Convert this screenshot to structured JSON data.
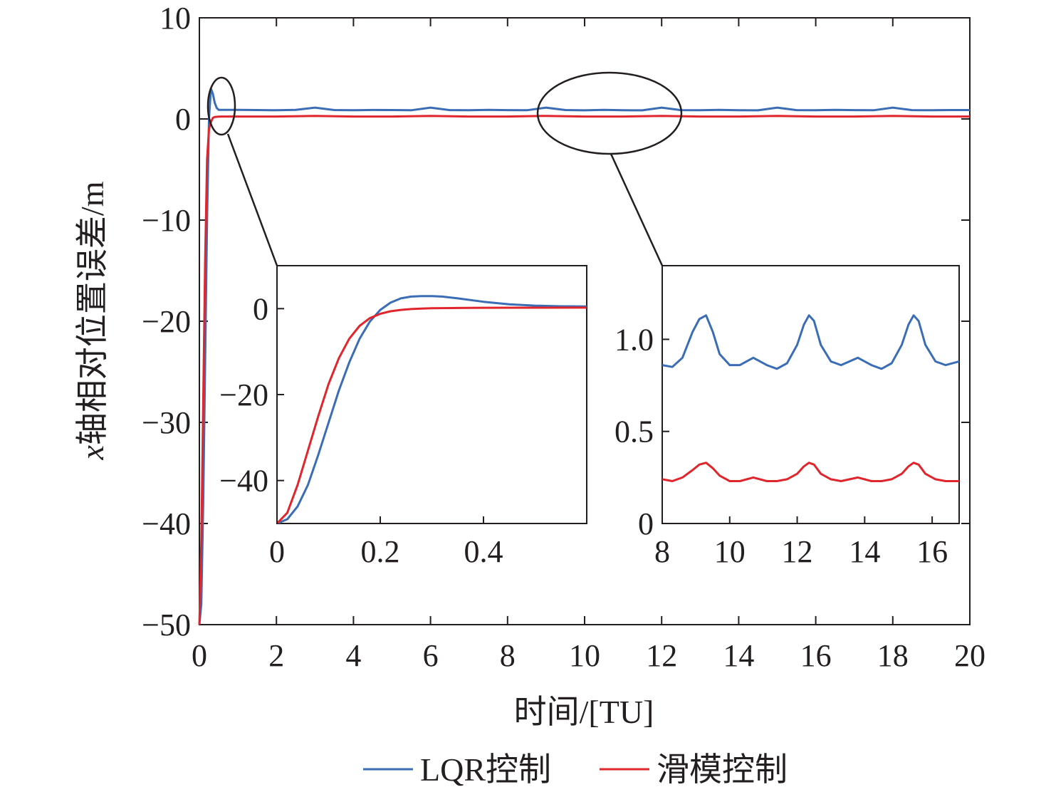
{
  "colors": {
    "lqr": "#3a6db5",
    "sliding": "#e0262c",
    "axis": "#231f20"
  },
  "chart_data": [
    {
      "id": "main",
      "type": "line",
      "xlabel": "时间/[TU]",
      "ylabel_var": "x",
      "ylabel_rest": "轴相对位置误差/m",
      "xlim": [
        0,
        20
      ],
      "ylim": [
        -50,
        10
      ],
      "xticks": [
        0,
        2,
        4,
        6,
        8,
        10,
        12,
        14,
        16,
        18,
        20
      ],
      "yticks": [
        10,
        0,
        -10,
        -20,
        -30,
        -40,
        -50
      ],
      "ytick_labels": [
        "10",
        "0",
        "−10",
        "−20",
        "−30",
        "−40",
        "−50"
      ],
      "grid": false,
      "series": [
        {
          "name": "LQR控制",
          "color": "#3a6db5",
          "x": [
            0,
            0.05,
            0.1,
            0.15,
            0.2,
            0.25,
            0.3,
            0.35,
            0.4,
            0.45,
            0.5,
            0.6,
            0.8,
            1,
            1.5,
            2,
            2.5,
            3,
            3.5,
            4,
            4.5,
            5,
            5.5,
            6,
            6.5,
            7,
            7.5,
            8,
            8.5,
            9,
            9.5,
            10,
            10.5,
            11,
            11.5,
            12,
            12.5,
            13,
            13.5,
            14,
            14.5,
            15,
            15.5,
            16,
            16.5,
            17,
            17.5,
            18,
            18.5,
            19,
            19.5,
            20
          ],
          "y": [
            -50,
            -48,
            -38,
            -24,
            -10,
            0,
            3,
            2.5,
            1.6,
            1.1,
            0.9,
            0.9,
            0.9,
            0.9,
            0.88,
            0.86,
            0.9,
            1.12,
            0.88,
            0.86,
            0.89,
            0.88,
            0.86,
            1.12,
            0.87,
            0.86,
            0.9,
            0.87,
            0.86,
            1.12,
            0.88,
            0.85,
            0.9,
            0.86,
            0.85,
            1.12,
            0.87,
            0.86,
            0.9,
            0.86,
            0.85,
            1.12,
            0.87,
            0.86,
            0.9,
            0.87,
            0.86,
            1.12,
            0.87,
            0.86,
            0.88,
            0.88
          ]
        },
        {
          "name": "滑模控制",
          "color": "#e0262c",
          "x": [
            0,
            0.05,
            0.1,
            0.15,
            0.2,
            0.25,
            0.3,
            0.35,
            0.4,
            0.5,
            0.6,
            1,
            2,
            3,
            4,
            5,
            6,
            7,
            8,
            9,
            10,
            11,
            12,
            13,
            14,
            15,
            16,
            17,
            18,
            19,
            20
          ],
          "y": [
            -50,
            -42,
            -28,
            -14,
            -4,
            -1,
            -0.3,
            0.1,
            0.2,
            0.23,
            0.24,
            0.24,
            0.24,
            0.3,
            0.24,
            0.24,
            0.3,
            0.24,
            0.24,
            0.3,
            0.24,
            0.24,
            0.3,
            0.24,
            0.24,
            0.3,
            0.24,
            0.24,
            0.3,
            0.24,
            0.24
          ]
        }
      ],
      "legend": {
        "placement": "bottom-center"
      }
    },
    {
      "id": "inset-left",
      "type": "line",
      "xlim": [
        0,
        0.6
      ],
      "ylim": [
        -50,
        10
      ],
      "xticks": [
        0,
        0.2,
        0.4
      ],
      "xtick_labels": [
        "0",
        "0.2",
        "0.4"
      ],
      "yticks": [
        0,
        -20,
        -40
      ],
      "ytick_labels": [
        "0",
        "−20",
        "−40"
      ],
      "series": [
        {
          "name": "LQR控制",
          "color": "#3a6db5",
          "x": [
            0,
            0.02,
            0.04,
            0.06,
            0.08,
            0.1,
            0.12,
            0.14,
            0.16,
            0.18,
            0.2,
            0.22,
            0.24,
            0.26,
            0.28,
            0.3,
            0.32,
            0.35,
            0.4,
            0.45,
            0.5,
            0.55,
            0.6
          ],
          "y": [
            -50,
            -49,
            -46,
            -41,
            -34,
            -26.5,
            -19,
            -12.5,
            -7,
            -3,
            -0.3,
            1.4,
            2.4,
            2.8,
            2.9,
            2.9,
            2.8,
            2.4,
            1.6,
            1.0,
            0.7,
            0.55,
            0.5
          ]
        },
        {
          "name": "滑模控制",
          "color": "#e0262c",
          "x": [
            0,
            0.02,
            0.04,
            0.06,
            0.08,
            0.1,
            0.12,
            0.14,
            0.16,
            0.18,
            0.2,
            0.22,
            0.24,
            0.26,
            0.28,
            0.3,
            0.35,
            0.4,
            0.5,
            0.6
          ],
          "y": [
            -50,
            -47.5,
            -41,
            -33,
            -25,
            -17.5,
            -11.5,
            -7,
            -4,
            -2.2,
            -1.2,
            -0.6,
            -0.3,
            -0.1,
            0,
            0.1,
            0.15,
            0.2,
            0.22,
            0.24
          ]
        }
      ]
    },
    {
      "id": "inset-right",
      "type": "line",
      "xlim": [
        8,
        16.8
      ],
      "ylim": [
        0,
        1.4
      ],
      "xticks": [
        8,
        10,
        12,
        14,
        16
      ],
      "xtick_labels": [
        "8",
        "10",
        "12",
        "14",
        "16"
      ],
      "yticks": [
        1.0,
        0.5,
        0
      ],
      "ytick_labels": [
        "1.0",
        "0.5",
        "0"
      ],
      "series": [
        {
          "name": "LQR控制",
          "color": "#3a6db5",
          "x": [
            8,
            8.3,
            8.6,
            8.9,
            9.1,
            9.3,
            9.5,
            9.7,
            10,
            10.3,
            10.7,
            11.1,
            11.4,
            11.7,
            12,
            12.2,
            12.35,
            12.5,
            12.7,
            13,
            13.3,
            13.8,
            14.2,
            14.5,
            14.8,
            15.1,
            15.3,
            15.45,
            15.6,
            15.8,
            16.1,
            16.4,
            16.8
          ],
          "y": [
            0.86,
            0.85,
            0.9,
            1.04,
            1.11,
            1.13,
            1.04,
            0.92,
            0.86,
            0.86,
            0.9,
            0.86,
            0.84,
            0.87,
            0.97,
            1.08,
            1.13,
            1.1,
            0.97,
            0.88,
            0.86,
            0.9,
            0.86,
            0.84,
            0.87,
            0.97,
            1.08,
            1.13,
            1.1,
            0.97,
            0.88,
            0.86,
            0.88
          ]
        },
        {
          "name": "滑模控制",
          "color": "#e0262c",
          "x": [
            8,
            8.3,
            8.6,
            8.9,
            9.1,
            9.3,
            9.5,
            9.7,
            10,
            10.3,
            10.7,
            11.1,
            11.4,
            11.7,
            12,
            12.2,
            12.35,
            12.5,
            12.7,
            13,
            13.3,
            13.8,
            14.2,
            14.5,
            14.8,
            15.1,
            15.3,
            15.45,
            15.6,
            15.8,
            16.1,
            16.4,
            16.8
          ],
          "y": [
            0.24,
            0.23,
            0.25,
            0.29,
            0.32,
            0.33,
            0.3,
            0.26,
            0.23,
            0.23,
            0.25,
            0.23,
            0.23,
            0.24,
            0.27,
            0.31,
            0.33,
            0.32,
            0.27,
            0.24,
            0.23,
            0.25,
            0.23,
            0.23,
            0.24,
            0.27,
            0.31,
            0.33,
            0.32,
            0.27,
            0.24,
            0.23,
            0.23
          ]
        }
      ]
    }
  ]
}
